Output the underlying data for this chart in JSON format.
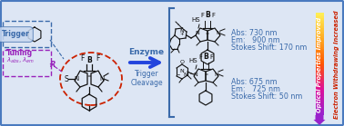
{
  "background_color": "#dde6f4",
  "border_color": "#4a7abf",
  "text_enzyme": "Enzyme",
  "text_trigger_cleavage": "Trigger\nCleavage",
  "text_trigger": "Trigger",
  "text_R": "R",
  "text_abs1": "Abs: 675 nm",
  "text_em1": "Em:   725 nm",
  "text_stokes1": "Stokes Shift: 50 nm",
  "text_abs2": "Abs: 730 nm",
  "text_em2": "Em:   900 nm",
  "text_stokes2": "Stokes Shift: 170 nm",
  "text_optical": "Optical Properties Improved",
  "text_electron": "Electron Withdrawing Increased",
  "blue_color": "#3a6aaa",
  "purple_color": "#9922bb",
  "red_color": "#cc2200",
  "arrow_color": "#2244dd",
  "black": "#111111",
  "fig_width": 3.78,
  "fig_height": 1.39,
  "dpi": 100
}
